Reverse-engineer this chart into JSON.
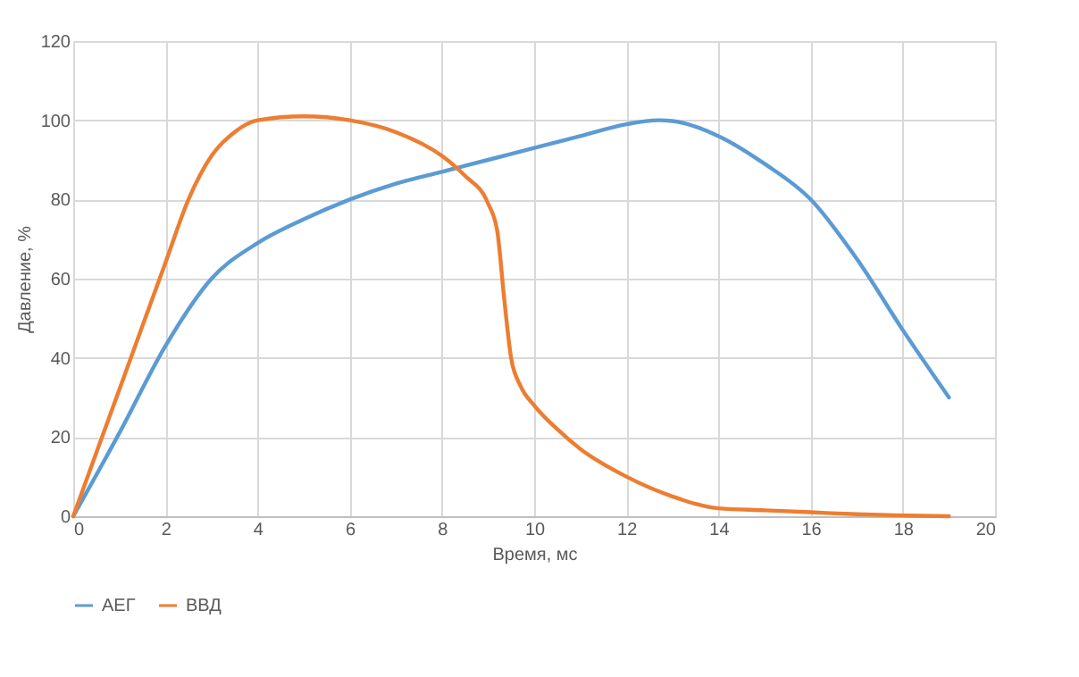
{
  "chart_data": {
    "type": "line",
    "xlabel": "Время, мс",
    "ylabel": "Давление, %",
    "xlim": [
      0,
      20
    ],
    "xticks": [
      0,
      2,
      4,
      6,
      8,
      10,
      12,
      14,
      16,
      18,
      20
    ],
    "ylim": [
      0,
      120
    ],
    "yticks": [
      0,
      20,
      40,
      60,
      80,
      100,
      120
    ],
    "grid": true,
    "legend": "bottom",
    "marker": "none",
    "line_style": "solid",
    "series": [
      {
        "name": "АЕГ",
        "color": "#5b9bd5",
        "x": [
          0,
          1,
          2,
          3,
          4,
          5,
          6,
          7,
          8,
          9,
          10,
          11,
          12,
          12.7,
          13,
          14,
          15,
          16,
          17,
          18,
          19
        ],
        "values": [
          0,
          21,
          43,
          60,
          69,
          75,
          80,
          84,
          87,
          90,
          93,
          96,
          99,
          100,
          99.8,
          96,
          89,
          80,
          65,
          47,
          30
        ]
      },
      {
        "name": "ВВД",
        "color": "#ed7d31",
        "x": [
          0,
          1,
          2,
          2.5,
          3,
          3.5,
          4,
          5,
          6,
          7,
          8,
          8.5,
          9,
          9.2,
          9.35,
          9.5,
          9.7,
          10,
          10.5,
          11,
          12,
          13,
          14,
          15,
          16,
          17,
          18,
          19
        ],
        "values": [
          0,
          32,
          64,
          80,
          91,
          97,
          100,
          101,
          100,
          97,
          91,
          86,
          79,
          72,
          55,
          40,
          33,
          28,
          22,
          17,
          10,
          5,
          2,
          1.5,
          1,
          0.5,
          0.2,
          0
        ]
      }
    ]
  }
}
